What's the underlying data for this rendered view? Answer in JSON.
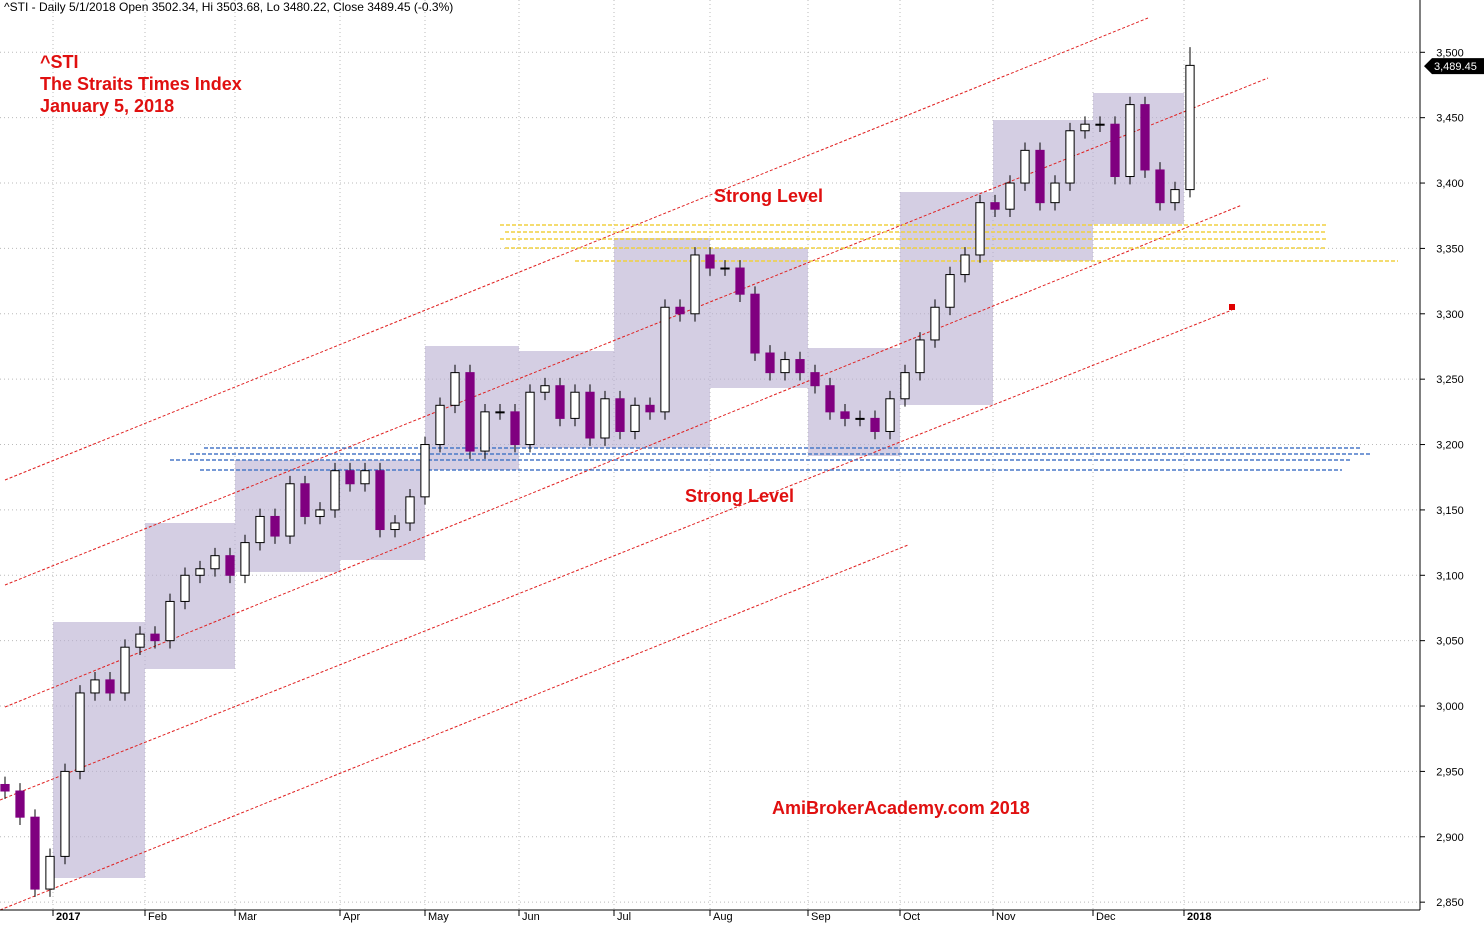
{
  "header": "^STI - Daily 5/1/2018 Open 3502.34, Hi 3503.68, Lo 3480.22, Close 3489.45 (-0.3%)",
  "chart_data": {
    "type": "candlestick",
    "title": "^STI",
    "subtitle": "The Straits Times Index",
    "date": "January 5, 2018",
    "annotations": [
      "Strong Level",
      "Strong Level",
      "AmiBrokerAcademy.com  2018"
    ],
    "last_value": 3489.45,
    "last_label": "3,489.45",
    "up_color": "#ffffff",
    "down_color": "#800080",
    "xlim": [
      0,
      284
    ],
    "xticks": [
      {
        "value": 10.6,
        "label": "2017"
      },
      {
        "value": 29,
        "label": "Feb"
      },
      {
        "value": 47,
        "label": "Mar"
      },
      {
        "value": 68,
        "label": "Apr"
      },
      {
        "value": 85,
        "label": "May"
      },
      {
        "value": 103.8,
        "label": "Jun"
      },
      {
        "value": 122.8,
        "label": "Jul"
      },
      {
        "value": 142,
        "label": "Aug"
      },
      {
        "value": 161.6,
        "label": "Sep"
      },
      {
        "value": 180,
        "label": "Oct"
      },
      {
        "value": 198.6,
        "label": "Nov"
      },
      {
        "value": 218.6,
        "label": "Dec"
      },
      {
        "value": 236.8,
        "label": "2018"
      }
    ],
    "ylim": [
      2844,
      3540
    ],
    "yticks": [
      {
        "value": 2850,
        "label": "2,850"
      },
      {
        "value": 2900,
        "label": "2,900"
      },
      {
        "value": 2950,
        "label": "2,950"
      },
      {
        "value": 3000,
        "label": "3,000"
      },
      {
        "value": 3050,
        "label": "3,050"
      },
      {
        "value": 3100,
        "label": "3,100"
      },
      {
        "value": 3150,
        "label": "3,150"
      },
      {
        "value": 3200,
        "label": "3,200"
      },
      {
        "value": 3250,
        "label": "3,250"
      },
      {
        "value": 3300,
        "label": "3,300"
      },
      {
        "value": 3350,
        "label": "3,350"
      },
      {
        "value": 3400,
        "label": "3,400"
      },
      {
        "value": 3450,
        "label": "3,450"
      },
      {
        "value": 3500,
        "label": "3,500"
      }
    ],
    "grid": true,
    "x": [
      1,
      4,
      7,
      10,
      13,
      16,
      19,
      22,
      25,
      28,
      31,
      34,
      37,
      40,
      43,
      46,
      49,
      52,
      55,
      58,
      61,
      64,
      67,
      70,
      73,
      76,
      79,
      82,
      85,
      88,
      91,
      94,
      97,
      100,
      103,
      106,
      109,
      112,
      115,
      118,
      121,
      124,
      127,
      130,
      133,
      136,
      139,
      142,
      145,
      148,
      151,
      154,
      157,
      160,
      163,
      166,
      169,
      172,
      175,
      178,
      181,
      184,
      187,
      190,
      193,
      196,
      199,
      202,
      205,
      208,
      211,
      214,
      217,
      220,
      223,
      226,
      229,
      232,
      235,
      238
    ],
    "open": [
      2940,
      2935,
      2915,
      2860,
      2885,
      2950,
      3010,
      3020,
      3010,
      3045,
      3055,
      3050,
      3080,
      3100,
      3105,
      3115,
      3100,
      3125,
      3145,
      3130,
      3170,
      3145,
      3150,
      3180,
      3170,
      3180,
      3135,
      3140,
      3160,
      3200,
      3230,
      3255,
      3195,
      3225,
      3225,
      3200,
      3240,
      3245,
      3220,
      3240,
      3205,
      3235,
      3210,
      3230,
      3225,
      3305,
      3300,
      3345,
      3335,
      3335,
      3315,
      3270,
      3255,
      3265,
      3255,
      3245,
      3225,
      3220,
      3220,
      3210,
      3235,
      3255,
      3280,
      3305,
      3330,
      3345,
      3385,
      3380,
      3400,
      3425,
      3385,
      3400,
      3440,
      3445,
      3445,
      3405,
      3460,
      3410,
      3385,
      3395
    ],
    "high": [
      2946,
      2941,
      2921,
      2891,
      2956,
      3016,
      3026,
      3026,
      3051,
      3061,
      3061,
      3086,
      3106,
      3111,
      3121,
      3121,
      3131,
      3151,
      3151,
      3176,
      3176,
      3156,
      3186,
      3186,
      3186,
      3186,
      3146,
      3166,
      3206,
      3236,
      3261,
      3261,
      3231,
      3231,
      3231,
      3246,
      3251,
      3251,
      3246,
      3246,
      3241,
      3241,
      3236,
      3236,
      3311,
      3311,
      3351,
      3351,
      3341,
      3341,
      3321,
      3276,
      3271,
      3271,
      3261,
      3251,
      3231,
      3226,
      3226,
      3241,
      3261,
      3286,
      3311,
      3336,
      3351,
      3391,
      3391,
      3406,
      3431,
      3431,
      3406,
      3446,
      3451,
      3451,
      3451,
      3466,
      3466,
      3416,
      3401,
      3504
    ],
    "low": [
      2929,
      2909,
      2854,
      2854,
      2879,
      2944,
      3004,
      3004,
      3004,
      3039,
      3044,
      3044,
      3074,
      3094,
      3099,
      3094,
      3094,
      3119,
      3124,
      3124,
      3139,
      3139,
      3144,
      3164,
      3164,
      3129,
      3129,
      3134,
      3154,
      3194,
      3224,
      3189,
      3189,
      3219,
      3194,
      3194,
      3234,
      3214,
      3214,
      3199,
      3199,
      3204,
      3204,
      3219,
      3219,
      3294,
      3294,
      3329,
      3329,
      3309,
      3264,
      3249,
      3249,
      3249,
      3239,
      3219,
      3214,
      3214,
      3204,
      3204,
      3229,
      3249,
      3274,
      3299,
      3324,
      3339,
      3374,
      3374,
      3394,
      3379,
      3379,
      3394,
      3434,
      3439,
      3399,
      3399,
      3404,
      3379,
      3379,
      3389
    ],
    "close": [
      2935,
      2915,
      2860,
      2885,
      2950,
      3010,
      3020,
      3010,
      3045,
      3055,
      3050,
      3080,
      3100,
      3105,
      3115,
      3100,
      3125,
      3145,
      3130,
      3170,
      3145,
      3150,
      3180,
      3170,
      3180,
      3135,
      3140,
      3160,
      3200,
      3230,
      3255,
      3195,
      3225,
      3225,
      3200,
      3240,
      3245,
      3220,
      3240,
      3205,
      3235,
      3210,
      3230,
      3225,
      3305,
      3300,
      3345,
      3335,
      3335,
      3315,
      3270,
      3255,
      3265,
      3255,
      3245,
      3225,
      3220,
      3220,
      3210,
      3235,
      3255,
      3280,
      3305,
      3330,
      3345,
      3385,
      3380,
      3400,
      3425,
      3385,
      3400,
      3440,
      3445,
      3445,
      3405,
      3460,
      3410,
      3385,
      3395,
      3490
    ]
  }
}
